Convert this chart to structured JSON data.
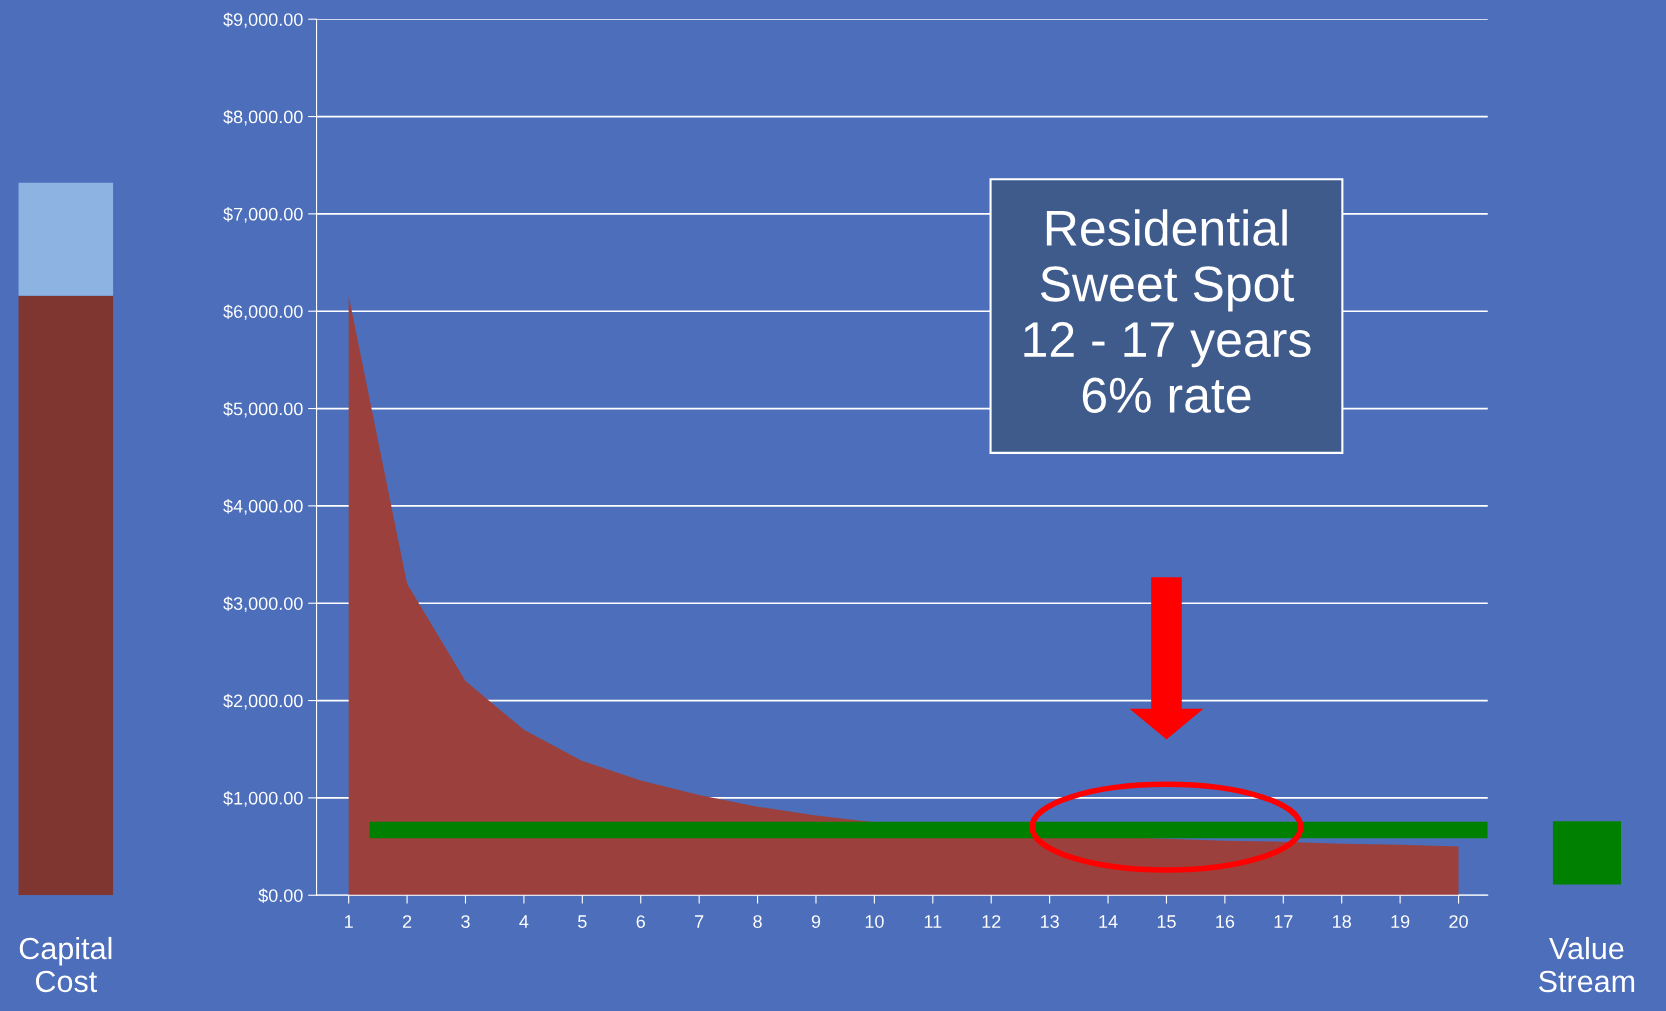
{
  "chart_data": [
    {
      "type": "bar",
      "stacked": true,
      "categories": [
        "Capital Cost"
      ],
      "ylim": [
        0,
        9000
      ],
      "tick_labels": "x",
      "series": [
        {
          "color": "#7f3530",
          "values": [
            6160
          ]
        },
        {
          "color": "#8db3e2",
          "values": [
            1160
          ]
        }
      ]
    },
    {
      "type": "area",
      "x": [
        1,
        2,
        3,
        4,
        5,
        6,
        7,
        8,
        9,
        10,
        11,
        12,
        13,
        14,
        15,
        16,
        17,
        18,
        19,
        20
      ],
      "xlim": [
        0.45,
        20.5
      ],
      "xticks": [
        1,
        2,
        3,
        4,
        5,
        6,
        7,
        8,
        9,
        10,
        11,
        12,
        13,
        14,
        15,
        16,
        17,
        18,
        19,
        20
      ],
      "ylim": [
        0,
        9000
      ],
      "yticks": [
        {
          "value": 0,
          "label": "$0.00"
        },
        {
          "value": 1000,
          "label": "$1,000.00"
        },
        {
          "value": 2000,
          "label": "$2,000.00"
        },
        {
          "value": 3000,
          "label": "$3,000.00"
        },
        {
          "value": 4000,
          "label": "$4,000.00"
        },
        {
          "value": 5000,
          "label": "$5,000.00"
        },
        {
          "value": 6000,
          "label": "$6,000.00"
        },
        {
          "value": 7000,
          "label": "$7,000.00"
        },
        {
          "value": 8000,
          "label": "$8,000.00"
        },
        {
          "value": 9000,
          "label": "$9,000.00"
        }
      ],
      "grid": "y",
      "series": [
        {
          "color": "#9b403c",
          "values": [
            6160,
            3200,
            2200,
            1700,
            1380,
            1180,
            1030,
            910,
            820,
            750,
            700,
            660,
            630,
            600,
            580,
            560,
            550,
            530,
            520,
            500
          ]
        },
        {
          "type": "line",
          "color": "#008000",
          "x": [
            1.36,
            20.5
          ],
          "values": [
            670,
            670
          ]
        }
      ],
      "annotations": [
        "Residential\nSweet Spot\n12 - 17 years\n6% rate"
      ]
    },
    {
      "type": "bar",
      "categories": [
        "Value Stream"
      ],
      "base": [
        110
      ],
      "values": [
        650
      ],
      "color": "#008000",
      "ylim": [
        0,
        9000
      ],
      "tick_labels": "x"
    }
  ]
}
